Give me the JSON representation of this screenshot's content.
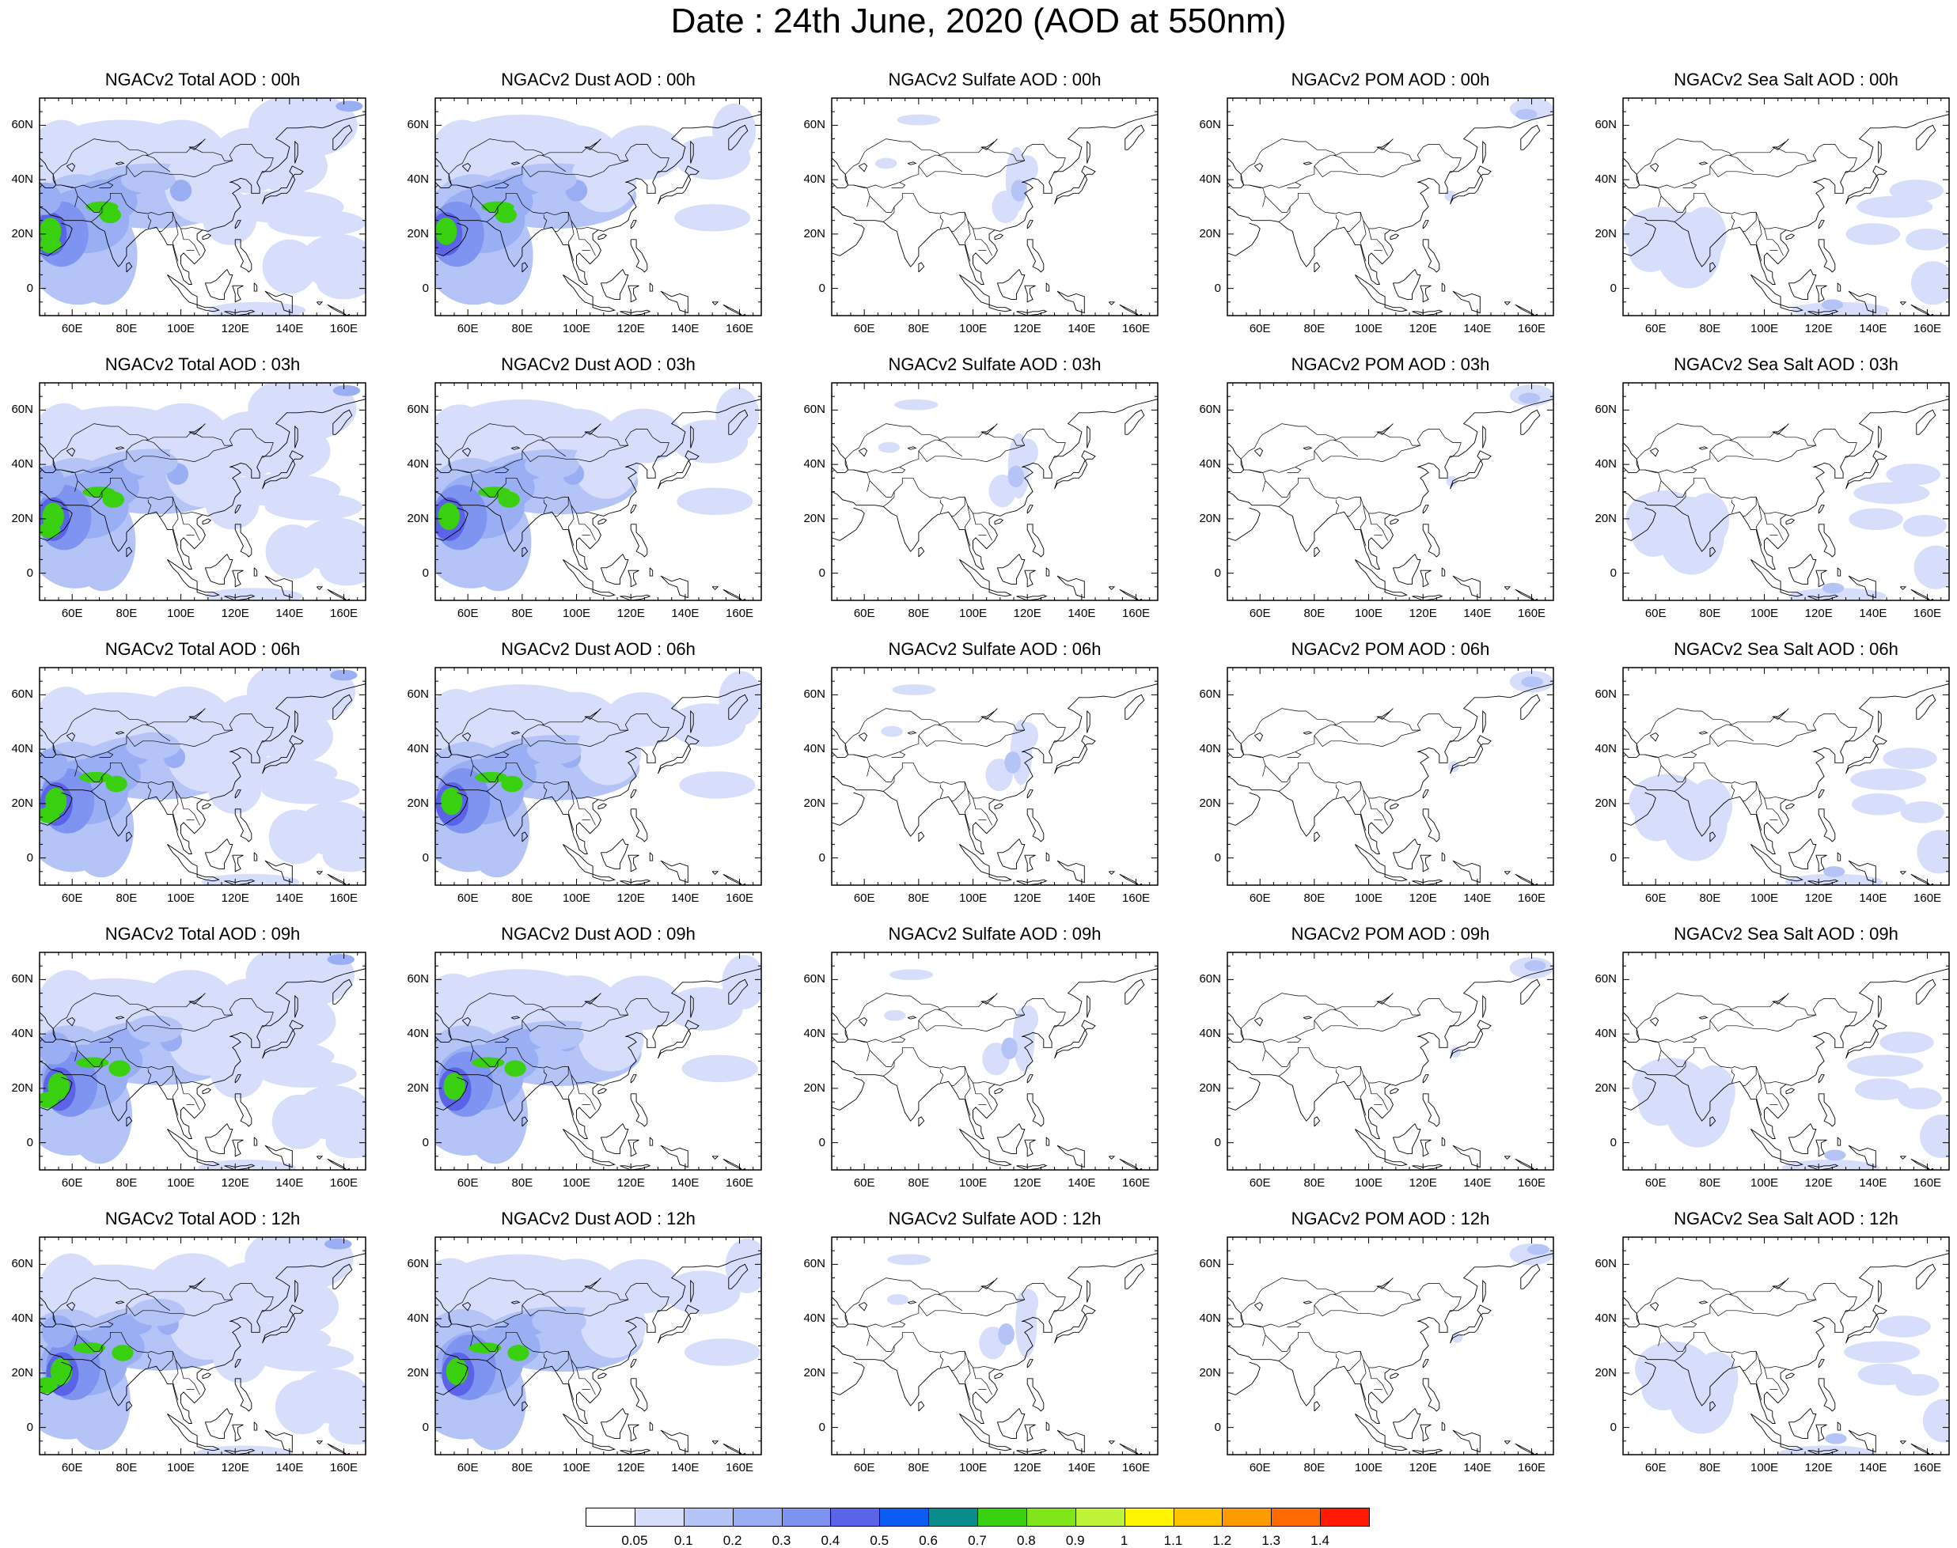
{
  "figure": {
    "title": "Date : 24th June, 2020 (AOD at 550nm)"
  },
  "axes": {
    "x_ticks": [
      "60E",
      "80E",
      "100E",
      "120E",
      "140E",
      "160E"
    ],
    "x_values": [
      60,
      80,
      100,
      120,
      140,
      160
    ],
    "y_ticks": [
      "60N",
      "40N",
      "20N",
      "0"
    ],
    "y_values": [
      60,
      40,
      20,
      0
    ],
    "lon_range": [
      48,
      168
    ],
    "lat_range": [
      -10,
      70
    ]
  },
  "panel_titles": [
    [
      "NGACv2 Total AOD : 00h",
      "NGACv2 Dust AOD : 00h",
      "NGACv2 Sulfate AOD : 00h",
      "NGACv2 POM AOD : 00h",
      "NGACv2 Sea Salt AOD : 00h"
    ],
    [
      "NGACv2 Total AOD : 03h",
      "NGACv2 Dust AOD : 03h",
      "NGACv2 Sulfate AOD : 03h",
      "NGACv2 POM AOD : 03h",
      "NGACv2 Sea Salt AOD : 03h"
    ],
    [
      "NGACv2 Total AOD : 06h",
      "NGACv2 Dust AOD : 06h",
      "NGACv2 Sulfate AOD : 06h",
      "NGACv2 POM AOD : 06h",
      "NGACv2 Sea Salt AOD : 06h"
    ],
    [
      "NGACv2 Total AOD : 09h",
      "NGACv2 Dust AOD : 09h",
      "NGACv2 Sulfate AOD : 09h",
      "NGACv2 POM AOD : 09h",
      "NGACv2 Sea Salt  AOD : 09h"
    ],
    [
      "NGACv2 Total AOD  : 12h",
      "NGACv2 Dust AOD : 12h",
      "NGACv2 Sulfate AOD : 12h",
      "NGACv2 POM  AOD : 12h",
      "NGACv2 Sea Salt  AOD : 12h"
    ]
  ],
  "colorbar": {
    "labels": [
      "0.05",
      "0.1",
      "0.2",
      "0.3",
      "0.4",
      "0.5",
      "0.6",
      "0.7",
      "0.8",
      "0.9",
      "1",
      "1.1",
      "1.2",
      "1.3",
      "1.4"
    ],
    "colors": [
      "#ffffff",
      "#d6defb",
      "#b4c4f7",
      "#9aaef4",
      "#7f94f0",
      "#5b63e9",
      "#0b5cf2",
      "#0a8c8c",
      "#39d10f",
      "#80e61a",
      "#c0f23a",
      "#fff500",
      "#ffc400",
      "#ff9a00",
      "#ff6a00",
      "#ff1a00"
    ]
  },
  "chart_data": {
    "type": "heatmap",
    "region": "Asia, 48E-168E, 10S-70N",
    "variables": [
      "Total AOD",
      "Dust AOD",
      "Sulfate AOD",
      "POM AOD",
      "Sea Salt AOD"
    ],
    "times": [
      "00h",
      "03h",
      "06h",
      "09h",
      "12h"
    ],
    "levels": [
      0.05,
      0.1,
      0.2,
      0.3,
      0.4,
      0.5,
      0.6,
      0.7,
      0.8,
      0.9,
      1,
      1.1,
      1.2,
      1.3,
      1.4
    ],
    "features": {
      "Total AOD": {
        "peak_value": 0.9,
        "peak_region": "Arabian Sea / NW India / Pakistan",
        "background": 0.15
      },
      "Dust AOD": {
        "peak_value": 0.9,
        "peak_region": "Arabian Sea / NW India / Pakistan",
        "background": 0.15
      },
      "Sulfate AOD": {
        "peak_value": 0.15,
        "peak_region": "East China"
      },
      "POM AOD": {
        "peak_value": 0.15,
        "peak_region": "Far East Siberia (~160E, 65N)"
      },
      "Sea Salt AOD": {
        "peak_value": 0.2,
        "peak_region": "Arabian Sea / Indian Ocean"
      }
    }
  }
}
